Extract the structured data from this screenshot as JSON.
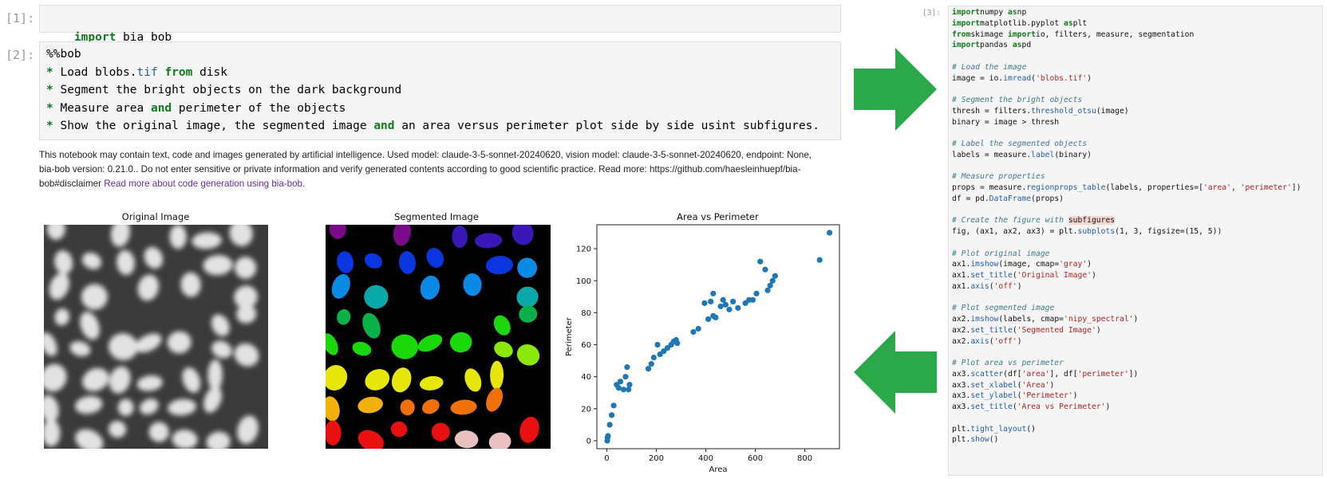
{
  "cell1": {
    "prompt": "[1]:",
    "kw": "import",
    "rest": " bia_bob"
  },
  "cell2": {
    "prompt": "[2]:",
    "magic": "%%bob",
    "lines": [
      {
        "b": "* ",
        "t1": "Load blobs.",
        "n": "tif",
        "t2": " ",
        "k": "from",
        "t3": " disk"
      },
      {
        "b": "* ",
        "t1": "Segment the bright objects on the dark background",
        "n": "",
        "t2": "",
        "k": "",
        "t3": ""
      },
      {
        "b": "* ",
        "t1": "Measure area ",
        "n": "",
        "t2": "",
        "k": "and",
        "t3": " perimeter of the objects"
      },
      {
        "b": "* ",
        "t1": "Show the original image, the segmented image ",
        "n": "",
        "t2": "",
        "k": "and",
        "t3": " an area versus perimeter plot side by side usint subfigures."
      }
    ]
  },
  "disclaimer": {
    "text": "This notebook may contain text, code and images generated by artificial intelligence. Used model: claude-3-5-sonnet-20240620, vision model: claude-3-5-sonnet-20240620, endpoint: None, bia-bob version: 0.21.0.. Do not enter sensitive or private information and verify generated contents according to good scientific practice. Read more: https://github.com/haesleinhuepf/bia-bob#disclaimer ",
    "link": "Read more about code generation using bia-bob."
  },
  "figures": {
    "original_title": "Original Image",
    "segmented_title": "Segmented Image",
    "scatter_title": "Area vs Perimeter"
  },
  "chart_data": {
    "type": "scatter",
    "title": "Area vs Perimeter",
    "xlabel": "Area",
    "ylabel": "Perimeter",
    "xlim": [
      -40,
      940
    ],
    "ylim": [
      -5,
      135
    ],
    "xticks": [
      0,
      200,
      400,
      600,
      800
    ],
    "yticks": [
      0,
      20,
      40,
      60,
      80,
      100,
      120
    ],
    "grid": false,
    "color": "#1f77b4",
    "x": [
      2,
      3,
      5,
      12,
      20,
      28,
      40,
      48,
      55,
      68,
      76,
      82,
      92,
      88,
      168,
      180,
      190,
      205,
      215,
      230,
      245,
      260,
      270,
      280,
      285,
      350,
      370,
      395,
      410,
      420,
      430,
      440,
      430,
      460,
      470,
      480,
      495,
      510,
      530,
      560,
      575,
      590,
      605,
      620,
      640,
      650,
      660,
      670,
      680,
      860,
      900
    ],
    "y": [
      0,
      2,
      3,
      10,
      16,
      22,
      35,
      33,
      37,
      32,
      40,
      46,
      35,
      32,
      45,
      48,
      52,
      60,
      54,
      56,
      58,
      60,
      62,
      63,
      61,
      68,
      70,
      86,
      76,
      87,
      92,
      77,
      78,
      84,
      88,
      85,
      82,
      87,
      83,
      86,
      88,
      88,
      92,
      112,
      107,
      94,
      97,
      100,
      103,
      113,
      130
    ]
  },
  "side": {
    "prompt": "[3]:",
    "lines": [
      [
        [
          "k",
          "import"
        ],
        [
          "",
          "numpy "
        ],
        [
          "k",
          "as"
        ],
        [
          "",
          "np"
        ]
      ],
      [
        [
          "k",
          "import"
        ],
        [
          "",
          "matplotlib.pyplot "
        ],
        [
          "k",
          "as"
        ],
        [
          "",
          "plt"
        ]
      ],
      [
        [
          "k",
          "from"
        ],
        [
          "",
          "skimage "
        ],
        [
          "k",
          "import"
        ],
        [
          "",
          "io, filters, measure, segmentation"
        ]
      ],
      [
        [
          "k",
          "import"
        ],
        [
          "",
          "pandas "
        ],
        [
          "k",
          "as"
        ],
        [
          "",
          "pd"
        ]
      ],
      [],
      [
        [
          "c",
          "# Load the image"
        ]
      ],
      [
        [
          "",
          "image = io."
        ],
        [
          "f",
          "imread"
        ],
        [
          "",
          "("
        ],
        [
          "s",
          "'blobs.tif'"
        ],
        [
          "",
          ")"
        ]
      ],
      [],
      [
        [
          "c",
          "# Segment the bright objects"
        ]
      ],
      [
        [
          "",
          "thresh = filters."
        ],
        [
          "f",
          "threshold_otsu"
        ],
        [
          "",
          "(image)"
        ]
      ],
      [
        [
          "",
          "binary = image > thresh"
        ]
      ],
      [],
      [
        [
          "c",
          "# Label the segmented objects"
        ]
      ],
      [
        [
          "",
          "labels = measure."
        ],
        [
          "f",
          "label"
        ],
        [
          "",
          "(binary)"
        ]
      ],
      [],
      [
        [
          "c",
          "# Measure properties"
        ]
      ],
      [
        [
          "",
          "props = measure."
        ],
        [
          "f",
          "regionprops_table"
        ],
        [
          "",
          "(labels, properties=["
        ],
        [
          "s",
          "'area'"
        ],
        [
          "",
          ", "
        ],
        [
          "s",
          "'perimeter'"
        ],
        [
          "",
          "])"
        ]
      ],
      [
        [
          "",
          "df = pd."
        ],
        [
          "f",
          "DataFrame"
        ],
        [
          "",
          "(props)"
        ]
      ],
      [],
      [
        [
          "c",
          "# Create the figure with "
        ],
        [
          "hl",
          "subfigures"
        ]
      ],
      [
        [
          "",
          "fig, (ax1, ax2, ax3) = plt."
        ],
        [
          "f",
          "subplots"
        ],
        [
          "",
          "(1, 3, figsize=(15, 5))"
        ]
      ],
      [],
      [
        [
          "c",
          "# Plot original image"
        ]
      ],
      [
        [
          "",
          "ax1."
        ],
        [
          "f",
          "imshow"
        ],
        [
          "",
          "(image, cmap="
        ],
        [
          "s",
          "'gray'"
        ],
        [
          "",
          ")"
        ]
      ],
      [
        [
          "",
          "ax1."
        ],
        [
          "f",
          "set_title"
        ],
        [
          "",
          "("
        ],
        [
          "s",
          "'Original Image'"
        ],
        [
          "",
          ")"
        ]
      ],
      [
        [
          "",
          "ax1."
        ],
        [
          "f",
          "axis"
        ],
        [
          "",
          "("
        ],
        [
          "s",
          "'off'"
        ],
        [
          "",
          ")"
        ]
      ],
      [],
      [
        [
          "c",
          "# Plot segmented image"
        ]
      ],
      [
        [
          "",
          "ax2."
        ],
        [
          "f",
          "imshow"
        ],
        [
          "",
          "(labels, cmap="
        ],
        [
          "s",
          "'nipy_spectral'"
        ],
        [
          "",
          ")"
        ]
      ],
      [
        [
          "",
          "ax2."
        ],
        [
          "f",
          "set_title"
        ],
        [
          "",
          "("
        ],
        [
          "s",
          "'Segmented Image'"
        ],
        [
          "",
          ")"
        ]
      ],
      [
        [
          "",
          "ax2."
        ],
        [
          "f",
          "axis"
        ],
        [
          "",
          "("
        ],
        [
          "s",
          "'off'"
        ],
        [
          "",
          ")"
        ]
      ],
      [],
      [
        [
          "c",
          "# Plot area vs perimeter"
        ]
      ],
      [
        [
          "",
          "ax3."
        ],
        [
          "f",
          "scatter"
        ],
        [
          "",
          "(df["
        ],
        [
          "s",
          "'area'"
        ],
        [
          "",
          "], df["
        ],
        [
          "s",
          "'perimeter'"
        ],
        [
          "",
          "])"
        ]
      ],
      [
        [
          "",
          "ax3."
        ],
        [
          "f",
          "set_xlabel"
        ],
        [
          "",
          "("
        ],
        [
          "s",
          "'Area'"
        ],
        [
          "",
          ")"
        ]
      ],
      [
        [
          "",
          "ax3."
        ],
        [
          "f",
          "set_ylabel"
        ],
        [
          "",
          "("
        ],
        [
          "s",
          "'Perimeter'"
        ],
        [
          "",
          ")"
        ]
      ],
      [
        [
          "",
          "ax3."
        ],
        [
          "f",
          "set_title"
        ],
        [
          "",
          "("
        ],
        [
          "s",
          "'Area vs Perimeter'"
        ],
        [
          "",
          ")"
        ]
      ],
      [],
      [
        [
          "",
          "plt."
        ],
        [
          "f",
          "tight_layout"
        ],
        [
          "",
          "()"
        ]
      ],
      [
        [
          "",
          "plt."
        ],
        [
          "f",
          "show"
        ],
        [
          "",
          "()"
        ]
      ]
    ]
  },
  "colors": {
    "arrow": "#2aa84a",
    "scatter": "#1f77b4",
    "keyword": "#117a1a"
  }
}
